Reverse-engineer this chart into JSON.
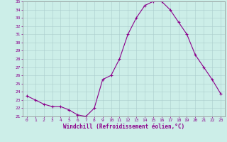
{
  "x": [
    0,
    1,
    2,
    3,
    4,
    5,
    6,
    7,
    8,
    9,
    10,
    11,
    12,
    13,
    14,
    15,
    16,
    17,
    18,
    19,
    20,
    21,
    22,
    23
  ],
  "y": [
    23.5,
    23.0,
    22.5,
    22.2,
    22.2,
    21.8,
    21.2,
    21.0,
    22.0,
    25.5,
    26.0,
    28.0,
    31.0,
    33.0,
    34.5,
    35.0,
    35.0,
    34.0,
    32.5,
    31.0,
    28.5,
    27.0,
    25.5,
    23.8
  ],
  "line_color": "#8B008B",
  "marker": "+",
  "marker_size": 3,
  "marker_edge_width": 0.8,
  "line_width": 0.8,
  "background_color": "#cceee8",
  "grid_color": "#aacccc",
  "tick_label_color": "#8B008B",
  "xlabel": "Windchill (Refroidissement éolien,°C)",
  "xlabel_color": "#8B008B",
  "ylim": [
    21,
    35
  ],
  "yticks": [
    21,
    22,
    23,
    24,
    25,
    26,
    27,
    28,
    29,
    30,
    31,
    32,
    33,
    34,
    35
  ],
  "xticks": [
    0,
    1,
    2,
    3,
    4,
    5,
    6,
    7,
    8,
    9,
    10,
    11,
    12,
    13,
    14,
    15,
    16,
    17,
    18,
    19,
    20,
    21,
    22,
    23
  ],
  "tick_fontsize": 4.5,
  "xlabel_fontsize": 5.5,
  "spine_color": "#888888"
}
